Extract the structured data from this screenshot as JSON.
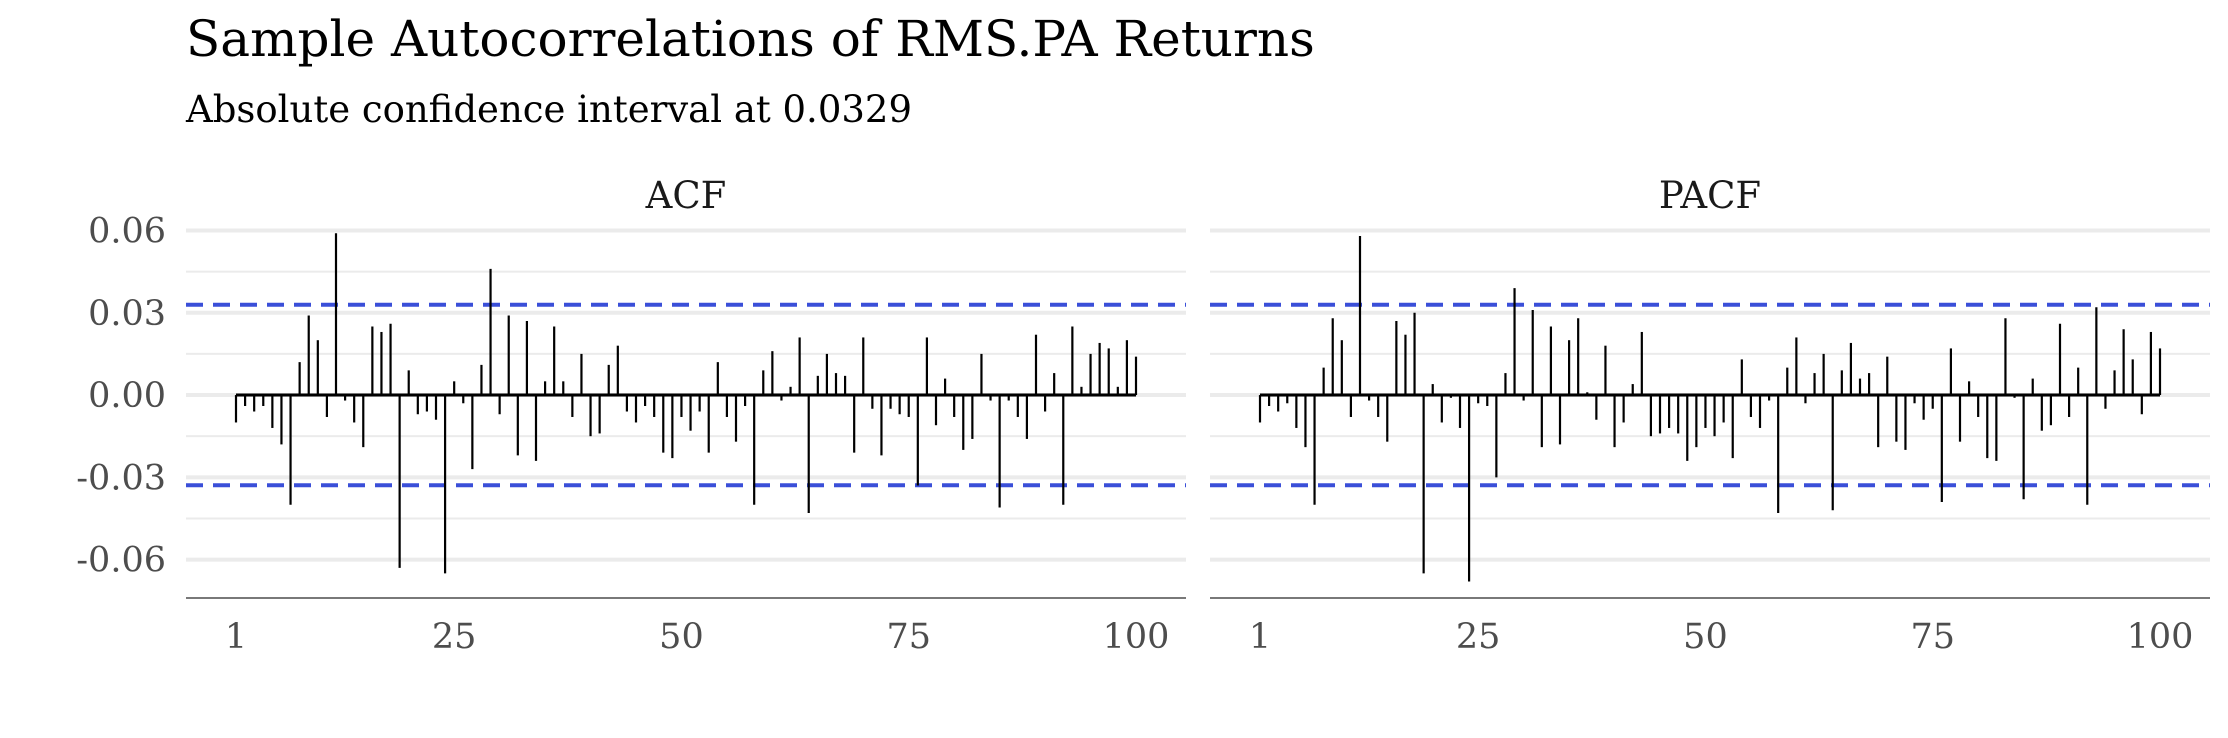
{
  "chart_data": {
    "type": "bar",
    "title": "Sample Autocorrelations of RMS.PA Returns",
    "subtitle": "Absolute confidence interval at 0.0329",
    "confidence_interval": 0.0329,
    "xlabel": "",
    "ylabel": "",
    "xlim": [
      1,
      100
    ],
    "ylim": [
      -0.074,
      0.062
    ],
    "grid": true,
    "colors": {
      "bar": "#000000",
      "ci_line": "#3a4fd8",
      "grid": "#ebebeb",
      "axis": "#4d4d4d"
    },
    "x_ticks": [
      1,
      25,
      50,
      75,
      100
    ],
    "x_tick_labels": [
      "1",
      "25",
      "50",
      "75",
      "100"
    ],
    "y_ticks": [
      -0.06,
      -0.03,
      0.0,
      0.03,
      0.06
    ],
    "y_tick_labels": [
      "-0.06",
      "-0.03",
      "0.00",
      "0.03",
      "0.06"
    ],
    "panels": [
      {
        "name": "ACF",
        "values": [
          -0.01,
          -0.004,
          -0.006,
          -0.004,
          -0.012,
          -0.018,
          -0.04,
          0.012,
          0.029,
          0.02,
          -0.008,
          0.059,
          -0.002,
          -0.01,
          -0.019,
          0.025,
          0.023,
          0.026,
          -0.063,
          0.009,
          -0.007,
          -0.006,
          -0.009,
          -0.065,
          0.005,
          -0.003,
          -0.027,
          0.011,
          0.046,
          -0.007,
          0.029,
          -0.022,
          0.027,
          -0.024,
          0.005,
          0.025,
          0.005,
          -0.008,
          0.015,
          -0.015,
          -0.014,
          0.011,
          0.018,
          -0.006,
          -0.01,
          -0.004,
          -0.008,
          -0.021,
          -0.023,
          -0.008,
          -0.013,
          -0.006,
          -0.021,
          0.012,
          -0.008,
          -0.017,
          -0.004,
          -0.04,
          0.009,
          0.016,
          -0.002,
          0.003,
          0.021,
          -0.043,
          0.007,
          0.015,
          0.008,
          0.007,
          -0.021,
          0.021,
          -0.005,
          -0.022,
          -0.005,
          -0.007,
          -0.008,
          -0.033,
          0.021,
          -0.011,
          0.006,
          -0.008,
          -0.02,
          -0.016,
          0.015,
          -0.002,
          -0.041,
          -0.002,
          -0.008,
          -0.016,
          0.022,
          -0.006,
          0.008,
          -0.04,
          0.025,
          0.003,
          0.015,
          0.019,
          0.017,
          0.003,
          0.02,
          0.014
        ]
      },
      {
        "name": "PACF",
        "values": [
          -0.01,
          -0.004,
          -0.006,
          -0.003,
          -0.012,
          -0.019,
          -0.04,
          0.01,
          0.028,
          0.02,
          -0.008,
          0.058,
          -0.002,
          -0.008,
          -0.017,
          0.027,
          0.022,
          0.03,
          -0.065,
          0.004,
          -0.01,
          -0.001,
          -0.012,
          -0.068,
          -0.003,
          -0.004,
          -0.03,
          0.008,
          0.039,
          -0.002,
          0.031,
          -0.019,
          0.025,
          -0.018,
          0.02,
          0.028,
          0.001,
          -0.009,
          0.018,
          -0.019,
          -0.01,
          0.004,
          0.023,
          -0.015,
          -0.014,
          -0.012,
          -0.014,
          -0.024,
          -0.019,
          -0.012,
          -0.015,
          -0.01,
          -0.023,
          0.013,
          -0.008,
          -0.012,
          -0.002,
          -0.043,
          0.01,
          0.021,
          -0.003,
          0.008,
          0.015,
          -0.042,
          0.009,
          0.019,
          0.006,
          0.008,
          -0.019,
          0.014,
          -0.017,
          -0.02,
          -0.003,
          -0.009,
          -0.005,
          -0.039,
          0.017,
          -0.017,
          0.005,
          -0.008,
          -0.023,
          -0.024,
          0.028,
          -0.001,
          -0.038,
          0.006,
          -0.013,
          -0.011,
          0.026,
          -0.008,
          0.01,
          -0.04,
          0.032,
          -0.005,
          0.009,
          0.024,
          0.013,
          -0.007,
          0.023,
          0.017
        ]
      }
    ]
  }
}
